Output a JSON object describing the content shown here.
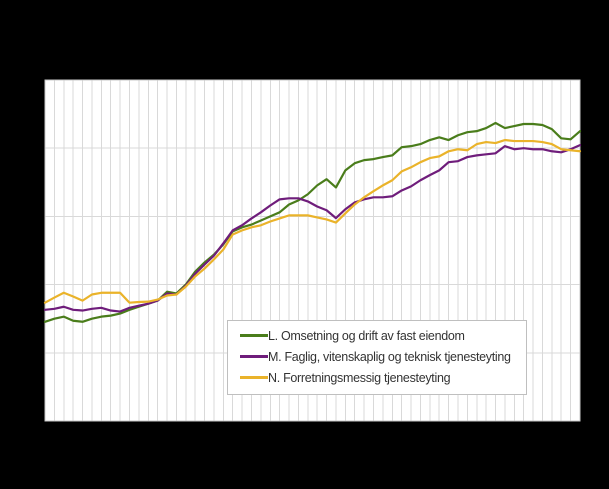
{
  "window": {
    "background_color": "#000000"
  },
  "plot_style": {
    "plot_background_color": "#ffffff",
    "plot_border_color": "#c9c9c9",
    "grid_color": "#d9d9d9",
    "legend_border_color": "#bfbfbf",
    "legend_text_color": "#333333"
  },
  "chart_data": {
    "type": "line",
    "title": "",
    "xlabel": "",
    "ylabel": "",
    "x_points": 58,
    "axis_tick_labels_visible": false,
    "ylim": [
      60,
      160
    ],
    "y_gridlines": [
      80,
      100,
      120,
      140
    ],
    "grid": true,
    "legend_position": "inside-bottom-right",
    "series": [
      {
        "name": "L. Omsetning og drift av fast eiendom",
        "color": "#4a7d1b",
        "values": [
          89.1,
          90,
          90.6,
          89.4,
          89.1,
          90,
          90.6,
          90.9,
          91.5,
          92.6,
          93.5,
          94.4,
          95.3,
          97.9,
          97.4,
          100,
          103.8,
          106.5,
          108.8,
          111.8,
          115.6,
          116.8,
          117.6,
          118.8,
          120,
          121.2,
          123.5,
          124.7,
          126.5,
          129.1,
          130.9,
          128.5,
          133.5,
          135.6,
          136.5,
          136.8,
          137.4,
          137.9,
          140.3,
          140.6,
          141.2,
          142.4,
          143.2,
          142.4,
          143.8,
          144.7,
          145,
          145.9,
          147.4,
          145.9,
          146.5,
          147.1,
          147.1,
          146.8,
          145.6,
          142.9,
          142.6,
          145
        ]
      },
      {
        "name": "M. Faglig, vitenskaplig og teknisk tjenesteyting",
        "color": "#6f1d7b",
        "values": [
          92.6,
          92.9,
          93.5,
          92.6,
          92.4,
          92.9,
          93.2,
          92.4,
          92.1,
          93.2,
          93.8,
          94.4,
          95.3,
          97.4,
          97.1,
          99.7,
          103.2,
          105.9,
          108.5,
          112.1,
          115.9,
          117.4,
          119.4,
          121.2,
          123.2,
          125,
          125.3,
          125.3,
          124.4,
          122.9,
          121.8,
          119.5,
          122.1,
          124.1,
          125,
          125.6,
          125.6,
          125.9,
          127.6,
          128.8,
          130.6,
          132.1,
          133.5,
          135.9,
          136.2,
          137.4,
          137.9,
          138.2,
          138.5,
          140.6,
          139.7,
          140,
          139.7,
          139.7,
          139.1,
          138.8,
          139.7,
          140.9
        ]
      },
      {
        "name": "N. Forretningsmessig tjenesteyting",
        "color": "#eab32a",
        "values": [
          94.7,
          96.2,
          97.6,
          96.5,
          95.3,
          97.1,
          97.6,
          97.6,
          97.6,
          94.7,
          94.9,
          95,
          95.6,
          96.8,
          97.1,
          99.4,
          102.4,
          104.7,
          107.4,
          110.3,
          114.7,
          115.9,
          116.8,
          117.4,
          118.5,
          119.4,
          120.3,
          120.3,
          120.3,
          119.7,
          119.1,
          118.2,
          120.9,
          123.5,
          125.6,
          127.4,
          129.1,
          130.6,
          133.2,
          134.4,
          135.9,
          137.1,
          137.6,
          139.1,
          139.7,
          139.4,
          141.2,
          141.8,
          141.5,
          142.4,
          142.1,
          142.1,
          142.1,
          141.8,
          141.2,
          139.7,
          139.4,
          139.1
        ]
      }
    ]
  },
  "legend": {
    "items": [
      {
        "label": "L. Omsetning og drift av fast eiendom"
      },
      {
        "label": "M. Faglig, vitenskaplig og teknisk tjenesteyting"
      },
      {
        "label": "N. Forretningsmessig tjenesteyting"
      }
    ]
  }
}
